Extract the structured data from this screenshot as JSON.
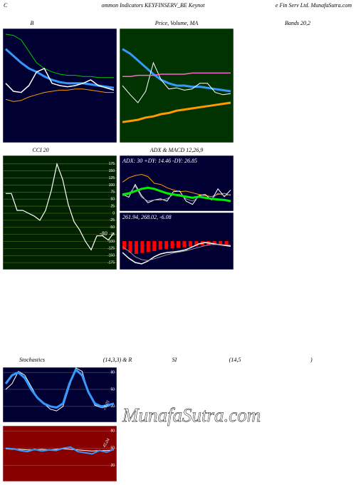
{
  "header": {
    "left": "C",
    "middle": "ommon  Indicators KEYFINSERV_BE Keynot",
    "right": "e  Fin  Serv  Ltd. MunafaSutra.com"
  },
  "labels": [
    "Bands 20,2",
    ")"
  ],
  "watermark": "MunafaSutra.com",
  "chart_data": [
    {
      "type": "line",
      "title": "B",
      "background": "#000033",
      "ylim": [
        0,
        100
      ],
      "series": [
        {
          "color": "#00cc00",
          "width": 1,
          "values": [
            95,
            94,
            90,
            80,
            70,
            65,
            62,
            60,
            59,
            59,
            58,
            58,
            57,
            57,
            57
          ]
        },
        {
          "color": "#3399ff",
          "width": 3,
          "values": [
            82,
            76,
            70,
            65,
            62,
            58,
            55,
            53,
            52,
            52,
            52,
            51,
            50,
            49,
            48
          ]
        },
        {
          "color": "#ffffff",
          "width": 1.5,
          "values": [
            52,
            45,
            44,
            50,
            62,
            65,
            52,
            50,
            49,
            50,
            52,
            55,
            50,
            48,
            46
          ]
        },
        {
          "color": "#ff9900",
          "width": 1,
          "values": [
            38,
            36,
            37,
            40,
            42,
            44,
            45,
            46,
            46,
            47,
            47,
            46,
            45,
            44,
            44
          ]
        }
      ]
    },
    {
      "type": "line",
      "title": "Price,  Volume,  MA",
      "background": "#003300",
      "ylim": [
        0,
        100
      ],
      "series": [
        {
          "color": "#3399ff",
          "width": 3,
          "values": [
            82,
            78,
            72,
            66,
            60,
            55,
            52,
            50,
            50,
            49,
            49,
            48,
            47,
            46,
            45
          ]
        },
        {
          "color": "#ffffff",
          "width": 1,
          "values": [
            50,
            42,
            35,
            45,
            70,
            55,
            47,
            48,
            46,
            47,
            52,
            52,
            44,
            42,
            43
          ]
        },
        {
          "color": "#ff66cc",
          "width": 1.5,
          "values": [
            58,
            58,
            59,
            59,
            59,
            60,
            60,
            60,
            60,
            61,
            61,
            61,
            61,
            61,
            61
          ]
        },
        {
          "color": "#ff9900",
          "width": 3,
          "values": [
            18,
            19,
            20,
            22,
            23,
            25,
            26,
            28,
            29,
            30,
            31,
            32,
            33,
            34,
            35
          ]
        }
      ]
    },
    {
      "type": "line",
      "title": "CCI 20",
      "background": "#002200",
      "grid_color": "#667722",
      "ylim": [
        -200,
        205
      ],
      "yticks": [
        175,
        150,
        125,
        100,
        75,
        50,
        25,
        0,
        -25,
        -50,
        -75,
        -100,
        -125,
        -150,
        -175
      ],
      "annotation": "-80",
      "series": [
        {
          "color": "#ffffff",
          "width": 1.2,
          "values": [
            70,
            70,
            10,
            10,
            0,
            -10,
            -25,
            10,
            80,
            175,
            120,
            30,
            -30,
            -60,
            -100,
            -130,
            -80,
            -80,
            -95,
            -70
          ]
        }
      ]
    },
    {
      "type": "line",
      "title": "ADX  & MACD 12,26,9",
      "background": "#000033",
      "ylim": [
        0,
        100
      ],
      "annotation": "ADX: 30  +DY: 14.46  -DY: 26.85",
      "series": [
        {
          "color": "#ff9900",
          "width": 1,
          "values": [
            52,
            60,
            64,
            66,
            62,
            50,
            48,
            42,
            38,
            35,
            36,
            33,
            30,
            28,
            26,
            30,
            32,
            28
          ]
        },
        {
          "color": "#ffffff",
          "width": 1,
          "values": [
            30,
            25,
            48,
            28,
            15,
            20,
            22,
            18,
            35,
            36,
            18,
            12,
            28,
            30,
            20,
            40,
            26,
            38
          ]
        },
        {
          "color": "#999999",
          "width": 1,
          "values": [
            28,
            30,
            45,
            25,
            18,
            20,
            20,
            22,
            30,
            30,
            22,
            18,
            25,
            25,
            22,
            32,
            28,
            30
          ]
        },
        {
          "color": "#00ee00",
          "width": 3,
          "values": [
            30,
            32,
            36,
            40,
            42,
            40,
            36,
            32,
            30,
            28,
            26,
            24,
            26,
            24,
            22,
            21,
            20,
            18
          ]
        }
      ]
    },
    {
      "type": "macd",
      "background": "#000033",
      "ylim": [
        -100,
        100
      ],
      "annotation": "261.94,  268.02,  -6.08",
      "histogram": {
        "color": "#ff0000",
        "values": [
          -30,
          -40,
          -45,
          -42,
          -38,
          -35,
          -30,
          -28,
          -26,
          -24,
          -22,
          -20,
          -18,
          -16,
          -15,
          -14,
          -14,
          -15
        ]
      },
      "series": [
        {
          "color": "#ffffff",
          "width": 1.5,
          "values": [
            -40,
            -60,
            -75,
            -80,
            -70,
            -55,
            -45,
            -40,
            -38,
            -35,
            -30,
            -20,
            -10,
            -5,
            -8,
            -12,
            -15,
            -18
          ]
        },
        {
          "color": "#999999",
          "width": 1,
          "values": [
            -20,
            -35,
            -55,
            -65,
            -68,
            -62,
            -55,
            -48,
            -42,
            -38,
            -34,
            -28,
            -22,
            -16,
            -12,
            -12,
            -13,
            -15
          ]
        }
      ]
    },
    {
      "type": "line",
      "title": "Stochastics",
      "subtitle": "(14,3,3) & R",
      "background": "#000033",
      "grid_color": "#555577",
      "ylim": [
        -8,
        89
      ],
      "yticks": [
        80,
        50,
        20
      ],
      "annotation": "23.05",
      "series": [
        {
          "color": "#ffffff",
          "width": 1,
          "values": [
            50,
            60,
            82,
            75,
            55,
            35,
            25,
            15,
            12,
            20,
            55,
            88,
            82,
            45,
            22,
            18,
            20,
            25
          ]
        },
        {
          "color": "#3399ff",
          "width": 3,
          "values": [
            60,
            75,
            80,
            70,
            50,
            35,
            25,
            20,
            18,
            25,
            60,
            85,
            75,
            45,
            25,
            20,
            22,
            25
          ]
        }
      ]
    },
    {
      "type": "line",
      "title": "SI",
      "subtitle": "(14,5",
      "background": "#880000",
      "grid_color": "#aa4444",
      "ylim": [
        -8,
        89
      ],
      "yticks": [
        80,
        50,
        20
      ],
      "annotation": "45.04",
      "series": [
        {
          "color": "#ffffff",
          "width": 1,
          "values": [
            49,
            48,
            48,
            47,
            47,
            48,
            47,
            48,
            49,
            48,
            47,
            46,
            45,
            46,
            46,
            47
          ]
        },
        {
          "color": "#3399ff",
          "width": 2,
          "values": [
            50,
            49,
            46,
            44,
            48,
            45,
            47,
            46,
            50,
            52,
            44,
            42,
            40,
            46,
            43,
            48
          ]
        }
      ]
    }
  ]
}
